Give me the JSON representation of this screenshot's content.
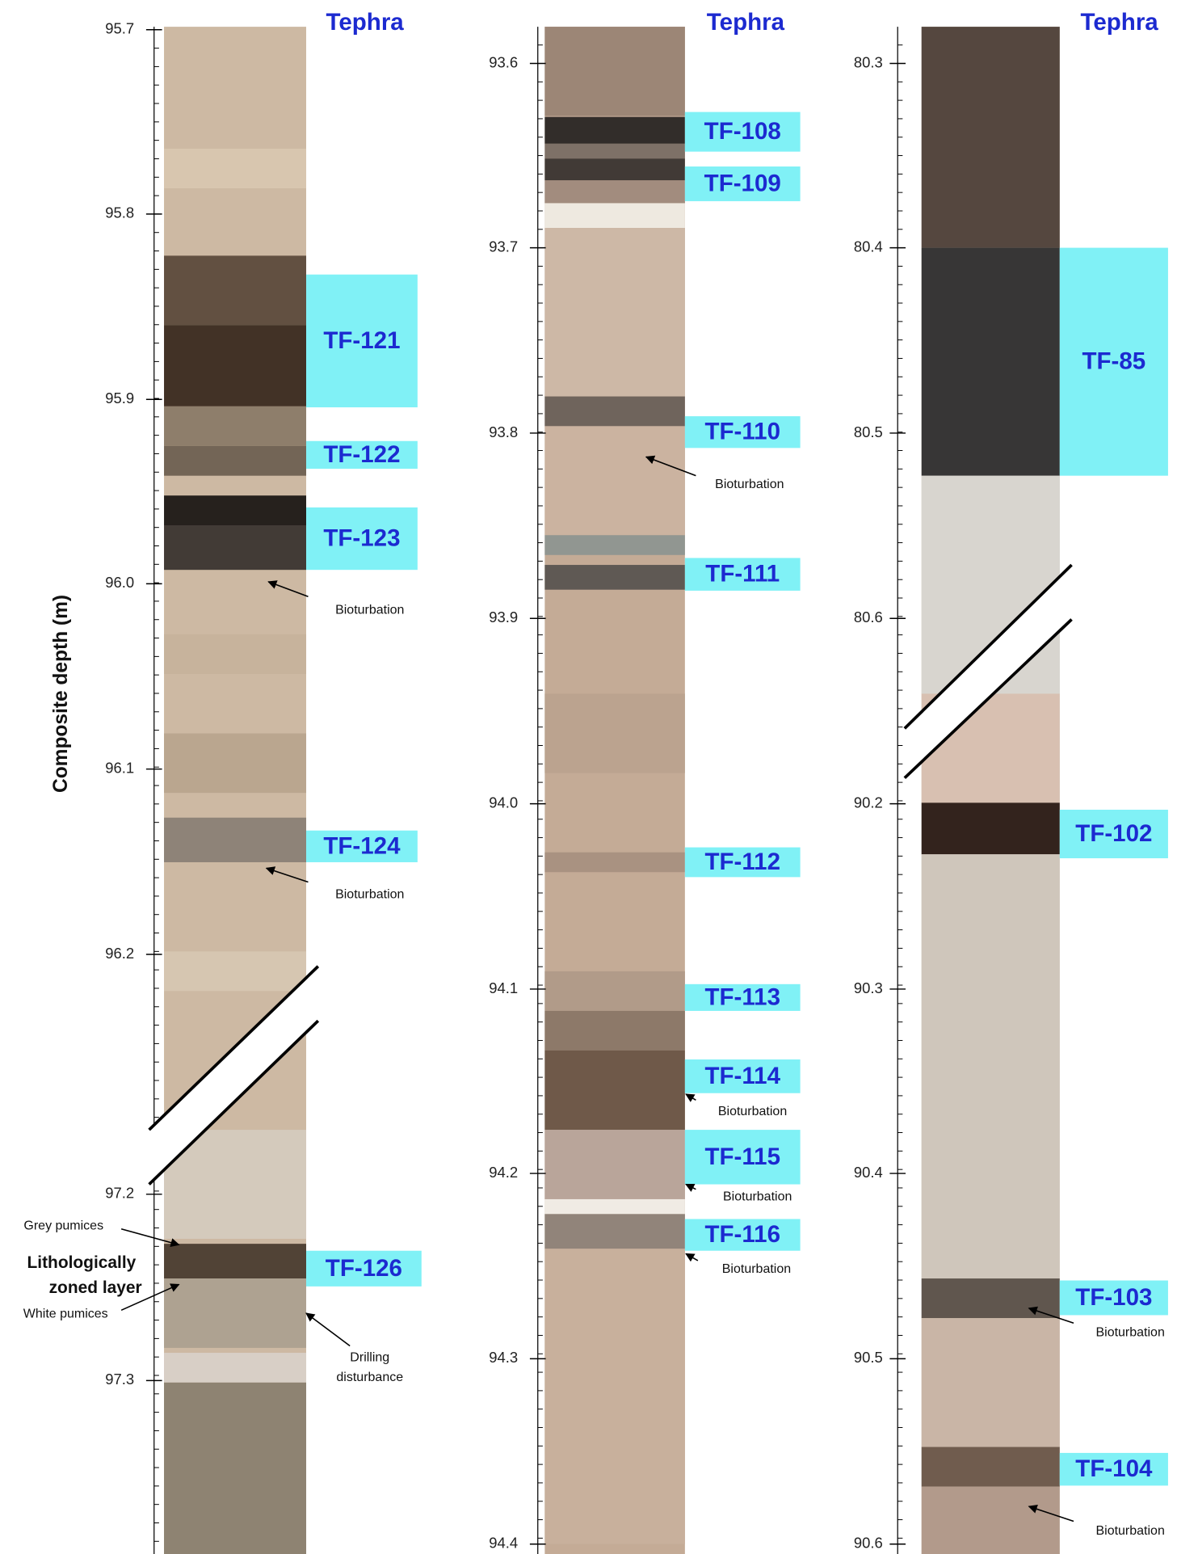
{
  "axis_title": "Composite depth (m)",
  "panels": [
    {
      "header": "Tephra",
      "depth_ticks": [
        "95.7",
        "95.8",
        "95.9",
        "96.0",
        "96.1",
        "96.2",
        "97.2",
        "97.3"
      ],
      "tephra": [
        "TF-121",
        "TF-122",
        "TF-123",
        "TF-124",
        "TF-126"
      ],
      "annotations": [
        "Bioturbation",
        "Bioturbation",
        "Grey pumices",
        "Lithologically",
        "zoned layer",
        "White pumices",
        "Drilling",
        "disturbance"
      ]
    },
    {
      "header": "Tephra",
      "depth_ticks": [
        "93.6",
        "93.7",
        "93.8",
        "93.9",
        "94.0",
        "94.1",
        "94.2",
        "94.3",
        "94.4"
      ],
      "tephra": [
        "TF-108",
        "TF-109",
        "TF-110",
        "TF-111",
        "TF-112",
        "TF-113",
        "TF-114",
        "TF-115",
        "TF-116"
      ],
      "annotations": [
        "Bioturbation",
        "Bioturbation",
        "Bioturbation",
        "Bioturbation"
      ]
    },
    {
      "header": "Tephra",
      "depth_ticks": [
        "80.3",
        "80.4",
        "80.5",
        "80.6",
        "90.2",
        "90.3",
        "90.4",
        "90.5",
        "90.6"
      ],
      "tephra": [
        "TF-85",
        "TF-102",
        "TF-103",
        "TF-104"
      ],
      "annotations": [
        "Bioturbation",
        "Bioturbation"
      ]
    }
  ]
}
